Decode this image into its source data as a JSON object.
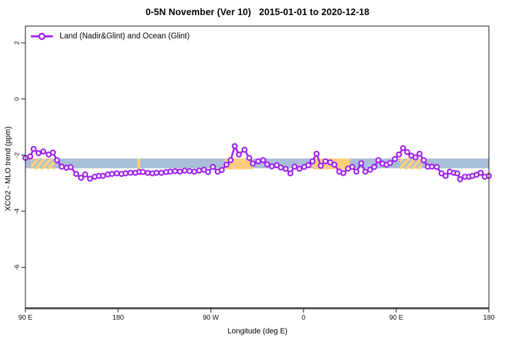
{
  "title": "0-5N November (Ver 10)   2015-01-01 to 2020-12-18",
  "legend": {
    "label": "Land (Nadir&Glint) and Ocean (Glint)",
    "marker": "open-circle-on-line"
  },
  "colors": {
    "series_purple": "#A020F0",
    "band_blue": "#A9BFD9",
    "band_orange": "#F9CF7E",
    "axis_box": "#333333",
    "x_baseline": "#4a4a4a",
    "tick_text": "#111111"
  },
  "chart_data": {
    "type": "line",
    "title": "0-5N November (Ver 10)   2015-01-01 to 2020-12-18",
    "xlabel": "Longitude (deg E)",
    "ylabel": "XCO2 - MLO trend (ppm)",
    "x_axis_span_deg": 450,
    "x_ticks": {
      "positions_deg": [
        0,
        90,
        180,
        270,
        360,
        450
      ],
      "labels": [
        "90 E",
        "180",
        "90 W",
        "0",
        "90 E",
        "180"
      ]
    },
    "y_ticks": [
      2,
      0,
      -2,
      -4,
      -6
    ],
    "ylim": [
      -7.45,
      2.6
    ],
    "grid": "off",
    "legend_position": "top-left-inside",
    "uncertainty_band": {
      "y_from": -2.47,
      "y_to": -2.12,
      "color": "#A9BFD9"
    },
    "orange_patches": [
      {
        "x_from": 5.5,
        "x_to": 29,
        "style": "hatch"
      },
      {
        "x_from": 108.5,
        "x_to": 111.5,
        "style": "solid"
      },
      {
        "x_from": 194,
        "x_to": 221,
        "style": "solid"
      },
      {
        "x_from": 279,
        "x_to": 315,
        "style": "solid"
      },
      {
        "x_from": 364,
        "x_to": 385,
        "style": "hatch"
      }
    ],
    "series": [
      {
        "name": "Land (Nadir&Glint) and Ocean (Glint)",
        "color": "#A020F0",
        "marker": "open-circle",
        "points": [
          [
            0,
            -2.1
          ],
          [
            4.7,
            -2.05
          ],
          [
            8,
            -1.78
          ],
          [
            12.7,
            -1.93
          ],
          [
            17.3,
            -1.87
          ],
          [
            22.7,
            -1.98
          ],
          [
            26.7,
            -1.91
          ],
          [
            30.7,
            -2.18
          ],
          [
            35.3,
            -2.41
          ],
          [
            40,
            -2.45
          ],
          [
            44,
            -2.43
          ],
          [
            49.3,
            -2.67
          ],
          [
            54,
            -2.81
          ],
          [
            58,
            -2.69
          ],
          [
            62.7,
            -2.84
          ],
          [
            67.3,
            -2.77
          ],
          [
            71.3,
            -2.74
          ],
          [
            75.3,
            -2.74
          ],
          [
            80,
            -2.69
          ],
          [
            84,
            -2.67
          ],
          [
            88.7,
            -2.65
          ],
          [
            93.3,
            -2.67
          ],
          [
            97.3,
            -2.65
          ],
          [
            102,
            -2.63
          ],
          [
            106.7,
            -2.63
          ],
          [
            110.7,
            -2.6
          ],
          [
            114,
            -2.6
          ],
          [
            118.7,
            -2.63
          ],
          [
            123.3,
            -2.65
          ],
          [
            127.3,
            -2.63
          ],
          [
            132,
            -2.63
          ],
          [
            136.7,
            -2.6
          ],
          [
            140.7,
            -2.59
          ],
          [
            145.3,
            -2.57
          ],
          [
            150,
            -2.59
          ],
          [
            154.7,
            -2.55
          ],
          [
            159.3,
            -2.57
          ],
          [
            164,
            -2.59
          ],
          [
            168.7,
            -2.55
          ],
          [
            173.3,
            -2.52
          ],
          [
            177.3,
            -2.6
          ],
          [
            182,
            -2.42
          ],
          [
            186.7,
            -2.59
          ],
          [
            190.7,
            -2.53
          ],
          [
            195.3,
            -2.34
          ],
          [
            199.3,
            -2.18
          ],
          [
            203.3,
            -1.68
          ],
          [
            207.3,
            -1.98
          ],
          [
            212.7,
            -1.81
          ],
          [
            217.3,
            -2.1
          ],
          [
            220.7,
            -2.3
          ],
          [
            226,
            -2.22
          ],
          [
            230.7,
            -2.18
          ],
          [
            234.7,
            -2.33
          ],
          [
            239.3,
            -2.4
          ],
          [
            244,
            -2.36
          ],
          [
            248,
            -2.44
          ],
          [
            252.7,
            -2.49
          ],
          [
            257.3,
            -2.65
          ],
          [
            261.3,
            -2.41
          ],
          [
            266,
            -2.49
          ],
          [
            270.7,
            -2.42
          ],
          [
            274.7,
            -2.36
          ],
          [
            278.7,
            -2.22
          ],
          [
            282.7,
            -1.95
          ],
          [
            286.7,
            -2.38
          ],
          [
            291.3,
            -2.22
          ],
          [
            296,
            -2.26
          ],
          [
            300,
            -2.34
          ],
          [
            304.7,
            -2.59
          ],
          [
            308.7,
            -2.64
          ],
          [
            313.3,
            -2.48
          ],
          [
            317.3,
            -2.42
          ],
          [
            321.3,
            -2.59
          ],
          [
            326,
            -2.29
          ],
          [
            330,
            -2.59
          ],
          [
            334.7,
            -2.52
          ],
          [
            338.7,
            -2.42
          ],
          [
            342.7,
            -2.18
          ],
          [
            346.7,
            -2.3
          ],
          [
            350.7,
            -2.34
          ],
          [
            354,
            -2.28
          ],
          [
            358.7,
            -2.14
          ],
          [
            362.7,
            -1.98
          ],
          [
            366.7,
            -1.75
          ],
          [
            370.7,
            -1.89
          ],
          [
            374.7,
            -2.02
          ],
          [
            378.7,
            -2.08
          ],
          [
            382.7,
            -1.95
          ],
          [
            386.7,
            -2.18
          ],
          [
            390.7,
            -2.41
          ],
          [
            394.7,
            -2.41
          ],
          [
            399.3,
            -2.42
          ],
          [
            404,
            -2.65
          ],
          [
            408,
            -2.74
          ],
          [
            412,
            -2.59
          ],
          [
            416,
            -2.63
          ],
          [
            419.3,
            -2.65
          ],
          [
            422,
            -2.86
          ],
          [
            426.7,
            -2.77
          ],
          [
            430.7,
            -2.77
          ],
          [
            434,
            -2.74
          ],
          [
            438,
            -2.7
          ],
          [
            442,
            -2.63
          ],
          [
            446,
            -2.77
          ],
          [
            450,
            -2.74
          ]
        ]
      }
    ]
  }
}
